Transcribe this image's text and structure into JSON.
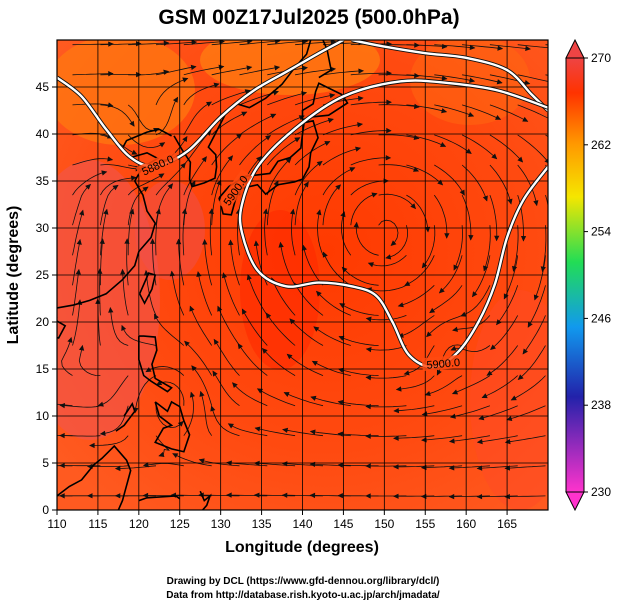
{
  "title": "GSM 00Z17Jul2025 (500.0hPa)",
  "xlabel": "Longitude (degrees)",
  "ylabel": "Latitude  (degrees)",
  "footer": {
    "line1": "Drawing by DCL (https://www.gfd-dennou.org/library/dcl/)",
    "line2": "Data from http://database.rish.kyoto-u.ac.jp/arch/jmadata/"
  },
  "map": {
    "xlim": [
      110,
      170
    ],
    "ylim": [
      0,
      50
    ],
    "x_ticks": [
      "110",
      "115",
      "120",
      "125",
      "130",
      "135",
      "140",
      "145",
      "150",
      "155",
      "160",
      "165"
    ],
    "y_ticks": [
      "0",
      "5",
      "10",
      "15",
      "20",
      "25",
      "30",
      "35",
      "40",
      "45"
    ],
    "contour_labels": [
      "5880.0",
      "5900.0",
      "5900.0"
    ],
    "contour_label_positions": [
      {
        "lon": 122.3,
        "lat": 36.7,
        "rotate": -25
      },
      {
        "lon": 131.8,
        "lat": 34.0,
        "rotate": -55
      },
      {
        "lon": 157.2,
        "lat": 15.6,
        "rotate": -5
      }
    ],
    "contour_5880": [
      [
        110,
        46
      ],
      [
        113,
        44
      ],
      [
        116,
        40.5
      ],
      [
        119,
        37.5
      ],
      [
        122,
        36.6
      ],
      [
        126,
        38.2
      ],
      [
        130,
        41.8
      ],
      [
        134,
        44.6
      ],
      [
        138,
        46.6
      ],
      [
        142,
        48.6
      ],
      [
        145,
        50
      ]
    ],
    "contour_5900_a": [
      [
        146,
        50
      ],
      [
        150,
        49.3
      ],
      [
        155,
        48.6
      ],
      [
        160,
        48.1
      ],
      [
        165,
        46.8
      ],
      [
        168,
        44.2
      ],
      [
        170,
        42.5
      ]
    ],
    "contour_5900_b": [
      [
        170,
        36.5
      ],
      [
        167,
        33
      ],
      [
        165,
        29
      ],
      [
        163.5,
        24
      ],
      [
        161.5,
        20
      ],
      [
        159,
        16.8
      ],
      [
        156,
        15.2
      ],
      [
        153,
        16.5
      ],
      [
        151,
        20
      ],
      [
        149,
        22.8
      ],
      [
        146,
        23.8
      ],
      [
        142,
        24.2
      ],
      [
        138,
        23.8
      ],
      [
        134.5,
        25.5
      ],
      [
        132.6,
        29.5
      ],
      [
        132.6,
        32.5
      ],
      [
        134.5,
        36.5
      ],
      [
        139,
        40.5
      ],
      [
        145,
        44
      ],
      [
        152,
        45.6
      ],
      [
        158,
        45.4
      ],
      [
        164,
        44.6
      ],
      [
        170,
        42.8
      ]
    ]
  },
  "colorbar": {
    "labels": [
      "270",
      "262",
      "254",
      "246",
      "238",
      "230"
    ],
    "range": [
      230,
      270
    ],
    "colors": [
      "#ff33cc",
      "#2222aa",
      "#1199ee",
      "#22dd55",
      "#f5e600",
      "#ff9a00",
      "#ff3300",
      "#ee4444"
    ]
  }
}
